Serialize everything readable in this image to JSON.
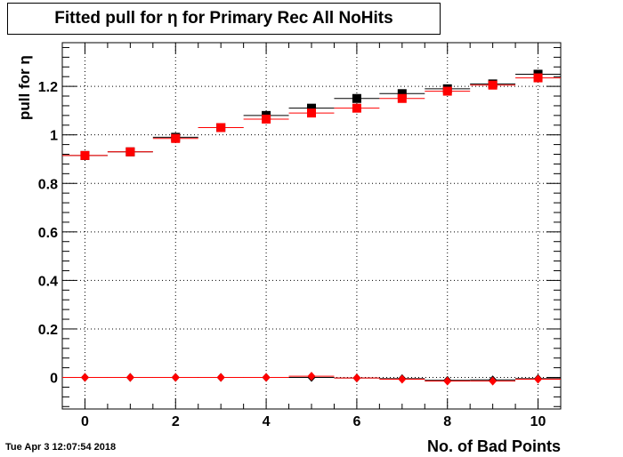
{
  "header": {
    "title": "Fitted pull for  η for Primary Rec All NoHits"
  },
  "footer": {
    "timestamp": "Tue Apr  3 12:07:54 2018"
  },
  "chart_data": {
    "type": "scatter",
    "title": "Fitted pull for  η for Primary Rec All NoHits",
    "xlabel": "No. of Bad Points",
    "ylabel": "pull for  η",
    "xlim": [
      -0.5,
      10.5
    ],
    "ylim": [
      -0.13,
      1.38
    ],
    "xticks": [
      0,
      2,
      4,
      6,
      8,
      10
    ],
    "yticks": [
      0,
      0.2,
      0.4,
      0.6,
      0.8,
      1,
      1.2
    ],
    "ytick_labels": [
      "0",
      "0.2",
      "0.4",
      "0.6",
      "0.8",
      "1",
      "1.2"
    ],
    "grid": true,
    "series": [
      {
        "marker": "square",
        "color": "#000000",
        "x": [
          0,
          1,
          2,
          3,
          4,
          5,
          6,
          7,
          8,
          9,
          10
        ],
        "y": [
          0.915,
          0.93,
          0.99,
          1.03,
          1.08,
          1.11,
          1.15,
          1.17,
          1.19,
          1.21,
          1.25
        ]
      },
      {
        "marker": "square",
        "color": "#ff0000",
        "x": [
          0,
          1,
          2,
          3,
          4,
          5,
          6,
          7,
          8,
          9,
          10
        ],
        "y": [
          0.915,
          0.93,
          0.985,
          1.03,
          1.065,
          1.09,
          1.11,
          1.15,
          1.18,
          1.205,
          1.235
        ]
      },
      {
        "marker": "diamond",
        "color": "#000000",
        "x": [
          0,
          1,
          2,
          3,
          4,
          5,
          6,
          7,
          8,
          9,
          10
        ],
        "y": [
          0.0,
          0.0,
          0.0,
          0.0,
          0.0,
          0.0,
          -0.002,
          -0.005,
          -0.012,
          -0.01,
          -0.005
        ]
      },
      {
        "marker": "diamond",
        "color": "#ff0000",
        "x": [
          0,
          1,
          2,
          3,
          4,
          5,
          6,
          7,
          8,
          9,
          10
        ],
        "y": [
          0.0,
          0.0,
          0.0,
          0.0,
          0.0,
          0.005,
          -0.002,
          -0.007,
          -0.015,
          -0.015,
          -0.007
        ]
      }
    ]
  }
}
